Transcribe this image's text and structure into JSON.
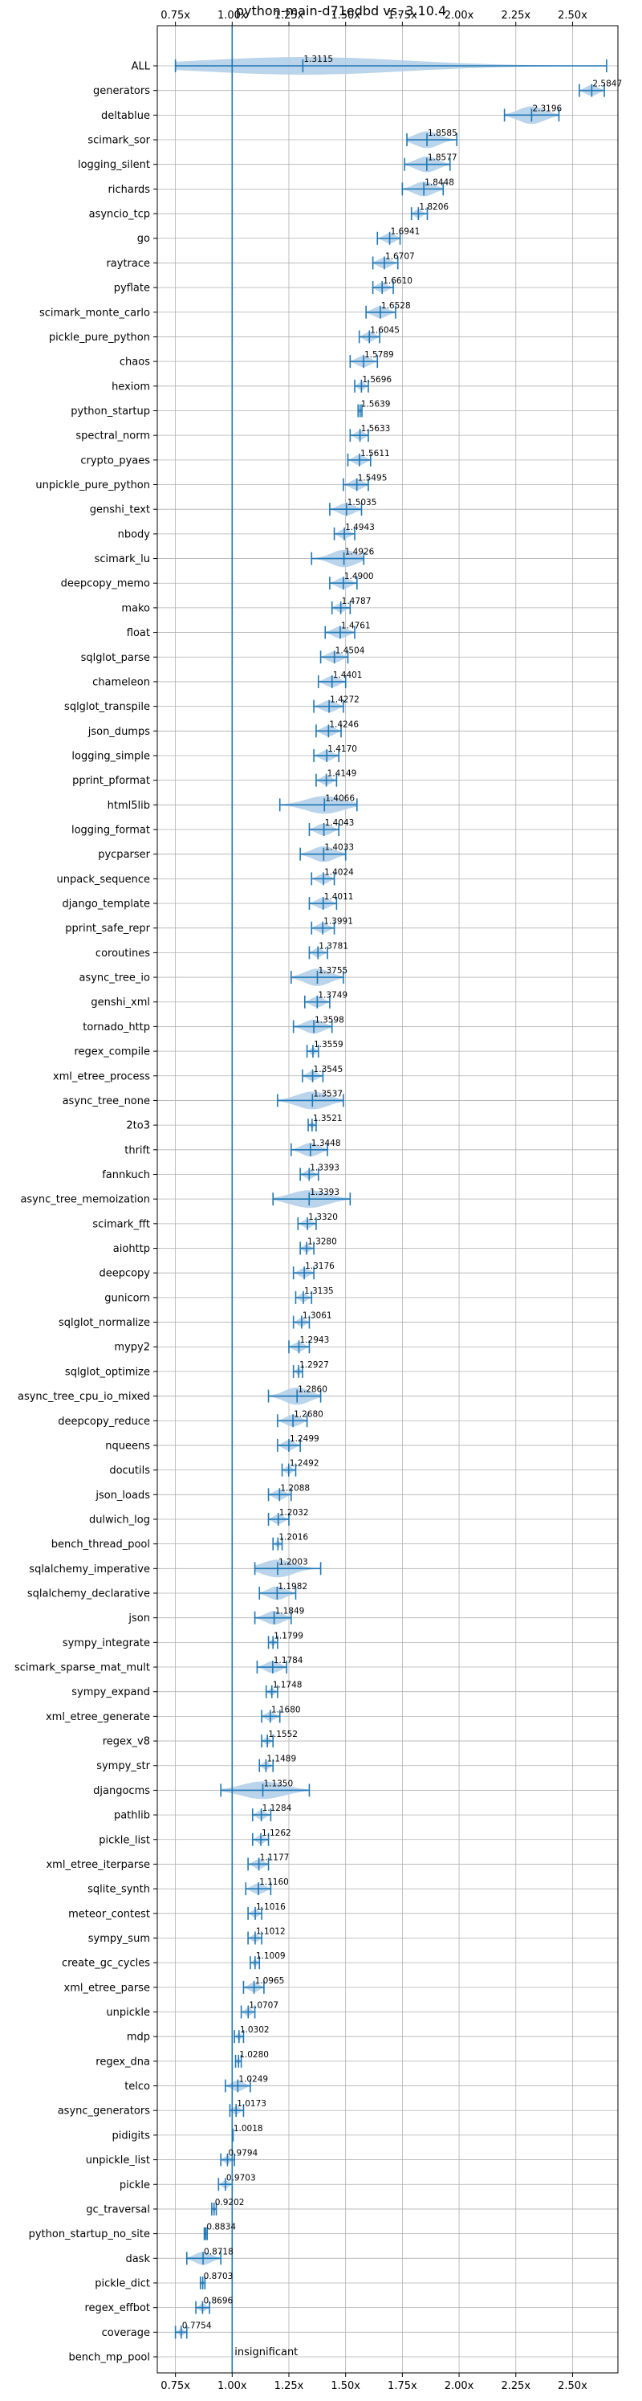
{
  "chart_data": {
    "type": "violin",
    "title": "python-main-d71edbd vs. 3.10.4",
    "xlabel": "",
    "ylabel": "",
    "xlim": [
      0.67,
      2.7
    ],
    "xticks": [
      "0.75x",
      "1.00x",
      "1.25x",
      "1.50x",
      "1.75x",
      "2.00x",
      "2.25x",
      "2.50x"
    ],
    "xtick_values": [
      0.75,
      1.0,
      1.25,
      1.5,
      1.75,
      2.0,
      2.25,
      2.5
    ],
    "reference_line": 1.0,
    "grid": true,
    "annotation": "insignificant",
    "colors": {
      "violin": "#aecde8",
      "line": "#1f77b4"
    },
    "benchmarks": [
      {
        "name": "ALL",
        "value": 1.3115,
        "label": "1.3115",
        "low": 0.75,
        "high": 2.65
      },
      {
        "name": "generators",
        "value": 2.5847,
        "label": "2.5847",
        "low": 2.53,
        "high": 2.64
      },
      {
        "name": "deltablue",
        "value": 2.3196,
        "label": "2.3196",
        "low": 2.2,
        "high": 2.44
      },
      {
        "name": "scimark_sor",
        "value": 1.8585,
        "label": "1.8585",
        "low": 1.77,
        "high": 1.99
      },
      {
        "name": "logging_silent",
        "value": 1.8577,
        "label": "1.8577",
        "low": 1.76,
        "high": 1.96
      },
      {
        "name": "richards",
        "value": 1.8448,
        "label": "1.8448",
        "low": 1.75,
        "high": 1.93
      },
      {
        "name": "asyncio_tcp",
        "value": 1.8206,
        "label": "1.8206",
        "low": 1.79,
        "high": 1.86
      },
      {
        "name": "go",
        "value": 1.6941,
        "label": "1.6941",
        "low": 1.64,
        "high": 1.74
      },
      {
        "name": "raytrace",
        "value": 1.6707,
        "label": "1.6707",
        "low": 1.62,
        "high": 1.73
      },
      {
        "name": "pyflate",
        "value": 1.661,
        "label": "1.6610",
        "low": 1.62,
        "high": 1.71
      },
      {
        "name": "scimark_monte_carlo",
        "value": 1.6528,
        "label": "1.6528",
        "low": 1.59,
        "high": 1.72
      },
      {
        "name": "pickle_pure_python",
        "value": 1.6045,
        "label": "1.6045",
        "low": 1.56,
        "high": 1.65
      },
      {
        "name": "chaos",
        "value": 1.5789,
        "label": "1.5789",
        "low": 1.52,
        "high": 1.64
      },
      {
        "name": "hexiom",
        "value": 1.5696,
        "label": "1.5696",
        "low": 1.54,
        "high": 1.6
      },
      {
        "name": "python_startup",
        "value": 1.5639,
        "label": "1.5639",
        "low": 1.555,
        "high": 1.572
      },
      {
        "name": "spectral_norm",
        "value": 1.5633,
        "label": "1.5633",
        "low": 1.52,
        "high": 1.6
      },
      {
        "name": "crypto_pyaes",
        "value": 1.5611,
        "label": "1.5611",
        "low": 1.51,
        "high": 1.61
      },
      {
        "name": "unpickle_pure_python",
        "value": 1.5495,
        "label": "1.5495",
        "low": 1.49,
        "high": 1.6
      },
      {
        "name": "genshi_text",
        "value": 1.5035,
        "label": "1.5035",
        "low": 1.43,
        "high": 1.57
      },
      {
        "name": "nbody",
        "value": 1.4943,
        "label": "1.4943",
        "low": 1.45,
        "high": 1.54
      },
      {
        "name": "scimark_lu",
        "value": 1.4926,
        "label": "1.4926",
        "low": 1.35,
        "high": 1.58
      },
      {
        "name": "deepcopy_memo",
        "value": 1.49,
        "label": "1.4900",
        "low": 1.43,
        "high": 1.55
      },
      {
        "name": "mako",
        "value": 1.4787,
        "label": "1.4787",
        "low": 1.44,
        "high": 1.52
      },
      {
        "name": "float",
        "value": 1.4761,
        "label": "1.4761",
        "low": 1.41,
        "high": 1.54
      },
      {
        "name": "sqlglot_parse",
        "value": 1.4504,
        "label": "1.4504",
        "low": 1.39,
        "high": 1.51
      },
      {
        "name": "chameleon",
        "value": 1.4401,
        "label": "1.4401",
        "low": 1.38,
        "high": 1.5
      },
      {
        "name": "sqlglot_transpile",
        "value": 1.4272,
        "label": "1.4272",
        "low": 1.36,
        "high": 1.49
      },
      {
        "name": "json_dumps",
        "value": 1.4246,
        "label": "1.4246",
        "low": 1.37,
        "high": 1.48
      },
      {
        "name": "logging_simple",
        "value": 1.417,
        "label": "1.4170",
        "low": 1.36,
        "high": 1.47
      },
      {
        "name": "pprint_pformat",
        "value": 1.4149,
        "label": "1.4149",
        "low": 1.37,
        "high": 1.46
      },
      {
        "name": "html5lib",
        "value": 1.4066,
        "label": "1.4066",
        "low": 1.21,
        "high": 1.55
      },
      {
        "name": "logging_format",
        "value": 1.4043,
        "label": "1.4043",
        "low": 1.34,
        "high": 1.47
      },
      {
        "name": "pycparser",
        "value": 1.4033,
        "label": "1.4033",
        "low": 1.3,
        "high": 1.5
      },
      {
        "name": "unpack_sequence",
        "value": 1.4024,
        "label": "1.4024",
        "low": 1.35,
        "high": 1.45
      },
      {
        "name": "django_template",
        "value": 1.4011,
        "label": "1.4011",
        "low": 1.34,
        "high": 1.46
      },
      {
        "name": "pprint_safe_repr",
        "value": 1.3991,
        "label": "1.3991",
        "low": 1.35,
        "high": 1.45
      },
      {
        "name": "coroutines",
        "value": 1.3781,
        "label": "1.3781",
        "low": 1.34,
        "high": 1.42
      },
      {
        "name": "async_tree_io",
        "value": 1.3755,
        "label": "1.3755",
        "low": 1.26,
        "high": 1.49
      },
      {
        "name": "genshi_xml",
        "value": 1.3749,
        "label": "1.3749",
        "low": 1.32,
        "high": 1.43
      },
      {
        "name": "tornado_http",
        "value": 1.3598,
        "label": "1.3598",
        "low": 1.27,
        "high": 1.44
      },
      {
        "name": "regex_compile",
        "value": 1.3559,
        "label": "1.3559",
        "low": 1.33,
        "high": 1.38
      },
      {
        "name": "xml_etree_process",
        "value": 1.3545,
        "label": "1.3545",
        "low": 1.31,
        "high": 1.4
      },
      {
        "name": "async_tree_none",
        "value": 1.3537,
        "label": "1.3537",
        "low": 1.2,
        "high": 1.49
      },
      {
        "name": "2to3",
        "value": 1.3521,
        "label": "1.3521",
        "low": 1.335,
        "high": 1.37
      },
      {
        "name": "thrift",
        "value": 1.3448,
        "label": "1.3448",
        "low": 1.26,
        "high": 1.42
      },
      {
        "name": "fannkuch",
        "value": 1.3393,
        "label": "1.3393",
        "low": 1.3,
        "high": 1.38
      },
      {
        "name": "async_tree_memoization",
        "value": 1.3393,
        "label": "1.3393",
        "low": 1.18,
        "high": 1.52
      },
      {
        "name": "scimark_fft",
        "value": 1.332,
        "label": "1.3320",
        "low": 1.29,
        "high": 1.37
      },
      {
        "name": "aiohttp",
        "value": 1.328,
        "label": "1.3280",
        "low": 1.3,
        "high": 1.36
      },
      {
        "name": "deepcopy",
        "value": 1.3176,
        "label": "1.3176",
        "low": 1.27,
        "high": 1.36
      },
      {
        "name": "gunicorn",
        "value": 1.3135,
        "label": "1.3135",
        "low": 1.28,
        "high": 1.35
      },
      {
        "name": "sqlglot_normalize",
        "value": 1.3061,
        "label": "1.3061",
        "low": 1.27,
        "high": 1.34
      },
      {
        "name": "mypy2",
        "value": 1.2943,
        "label": "1.2943",
        "low": 1.25,
        "high": 1.34
      },
      {
        "name": "sqlglot_optimize",
        "value": 1.2927,
        "label": "1.2927",
        "low": 1.27,
        "high": 1.31
      },
      {
        "name": "async_tree_cpu_io_mixed",
        "value": 1.286,
        "label": "1.2860",
        "low": 1.16,
        "high": 1.39
      },
      {
        "name": "deepcopy_reduce",
        "value": 1.268,
        "label": "1.2680",
        "low": 1.2,
        "high": 1.33
      },
      {
        "name": "nqueens",
        "value": 1.2499,
        "label": "1.2499",
        "low": 1.2,
        "high": 1.3
      },
      {
        "name": "docutils",
        "value": 1.2492,
        "label": "1.2492",
        "low": 1.22,
        "high": 1.28
      },
      {
        "name": "json_loads",
        "value": 1.2088,
        "label": "1.2088",
        "low": 1.16,
        "high": 1.26
      },
      {
        "name": "dulwich_log",
        "value": 1.2032,
        "label": "1.2032",
        "low": 1.16,
        "high": 1.25
      },
      {
        "name": "bench_thread_pool",
        "value": 1.2016,
        "label": "1.2016",
        "low": 1.18,
        "high": 1.22
      },
      {
        "name": "sqlalchemy_imperative",
        "value": 1.2003,
        "label": "1.2003",
        "low": 1.1,
        "high": 1.39
      },
      {
        "name": "sqlalchemy_declarative",
        "value": 1.1982,
        "label": "1.1982",
        "low": 1.12,
        "high": 1.28
      },
      {
        "name": "json",
        "value": 1.1849,
        "label": "1.1849",
        "low": 1.1,
        "high": 1.26
      },
      {
        "name": "sympy_integrate",
        "value": 1.1799,
        "label": "1.1799",
        "low": 1.16,
        "high": 1.2
      },
      {
        "name": "scimark_sparse_mat_mult",
        "value": 1.1784,
        "label": "1.1784",
        "low": 1.11,
        "high": 1.24
      },
      {
        "name": "sympy_expand",
        "value": 1.1748,
        "label": "1.1748",
        "low": 1.15,
        "high": 1.2
      },
      {
        "name": "xml_etree_generate",
        "value": 1.168,
        "label": "1.1680",
        "low": 1.13,
        "high": 1.21
      },
      {
        "name": "regex_v8",
        "value": 1.1552,
        "label": "1.1552",
        "low": 1.13,
        "high": 1.18
      },
      {
        "name": "sympy_str",
        "value": 1.1489,
        "label": "1.1489",
        "low": 1.12,
        "high": 1.18
      },
      {
        "name": "djangocms",
        "value": 1.135,
        "label": "1.1350",
        "low": 0.95,
        "high": 1.34
      },
      {
        "name": "pathlib",
        "value": 1.1284,
        "label": "1.1284",
        "low": 1.09,
        "high": 1.17
      },
      {
        "name": "pickle_list",
        "value": 1.1262,
        "label": "1.1262",
        "low": 1.09,
        "high": 1.16
      },
      {
        "name": "xml_etree_iterparse",
        "value": 1.1177,
        "label": "1.1177",
        "low": 1.07,
        "high": 1.16
      },
      {
        "name": "sqlite_synth",
        "value": 1.116,
        "label": "1.1160",
        "low": 1.06,
        "high": 1.17
      },
      {
        "name": "meteor_contest",
        "value": 1.1016,
        "label": "1.1016",
        "low": 1.07,
        "high": 1.13
      },
      {
        "name": "sympy_sum",
        "value": 1.1012,
        "label": "1.1012",
        "low": 1.07,
        "high": 1.13
      },
      {
        "name": "create_gc_cycles",
        "value": 1.1009,
        "label": "1.1009",
        "low": 1.08,
        "high": 1.12
      },
      {
        "name": "xml_etree_parse",
        "value": 1.0965,
        "label": "1.0965",
        "low": 1.05,
        "high": 1.14
      },
      {
        "name": "unpickle",
        "value": 1.0707,
        "label": "1.0707",
        "low": 1.04,
        "high": 1.1
      },
      {
        "name": "mdp",
        "value": 1.0302,
        "label": "1.0302",
        "low": 1.01,
        "high": 1.05
      },
      {
        "name": "regex_dna",
        "value": 1.028,
        "label": "1.0280",
        "low": 1.015,
        "high": 1.04
      },
      {
        "name": "telco",
        "value": 1.0249,
        "label": "1.0249",
        "low": 0.97,
        "high": 1.08
      },
      {
        "name": "async_generators",
        "value": 1.0173,
        "label": "1.0173",
        "low": 0.99,
        "high": 1.05
      },
      {
        "name": "pidigits",
        "value": 1.0018,
        "label": "1.0018",
        "low": 1.0,
        "high": 1.004
      },
      {
        "name": "unpickle_list",
        "value": 0.9794,
        "label": "0.9794",
        "low": 0.95,
        "high": 1.01
      },
      {
        "name": "pickle",
        "value": 0.9703,
        "label": "0.9703",
        "low": 0.94,
        "high": 1.0
      },
      {
        "name": "gc_traversal",
        "value": 0.9202,
        "label": "0.9202",
        "low": 0.91,
        "high": 0.93
      },
      {
        "name": "python_startup_no_site",
        "value": 0.8834,
        "label": "0.8834",
        "low": 0.877,
        "high": 0.89
      },
      {
        "name": "dask",
        "value": 0.8718,
        "label": "0.8718",
        "low": 0.8,
        "high": 0.95
      },
      {
        "name": "pickle_dict",
        "value": 0.8703,
        "label": "0.8703",
        "low": 0.86,
        "high": 0.88
      },
      {
        "name": "regex_effbot",
        "value": 0.8696,
        "label": "0.8696",
        "low": 0.84,
        "high": 0.9
      },
      {
        "name": "coverage",
        "value": 0.7754,
        "label": "0.7754",
        "low": 0.75,
        "high": 0.8
      },
      {
        "name": "bench_mp_pool",
        "value": null,
        "label": "",
        "low": null,
        "high": null
      }
    ]
  }
}
